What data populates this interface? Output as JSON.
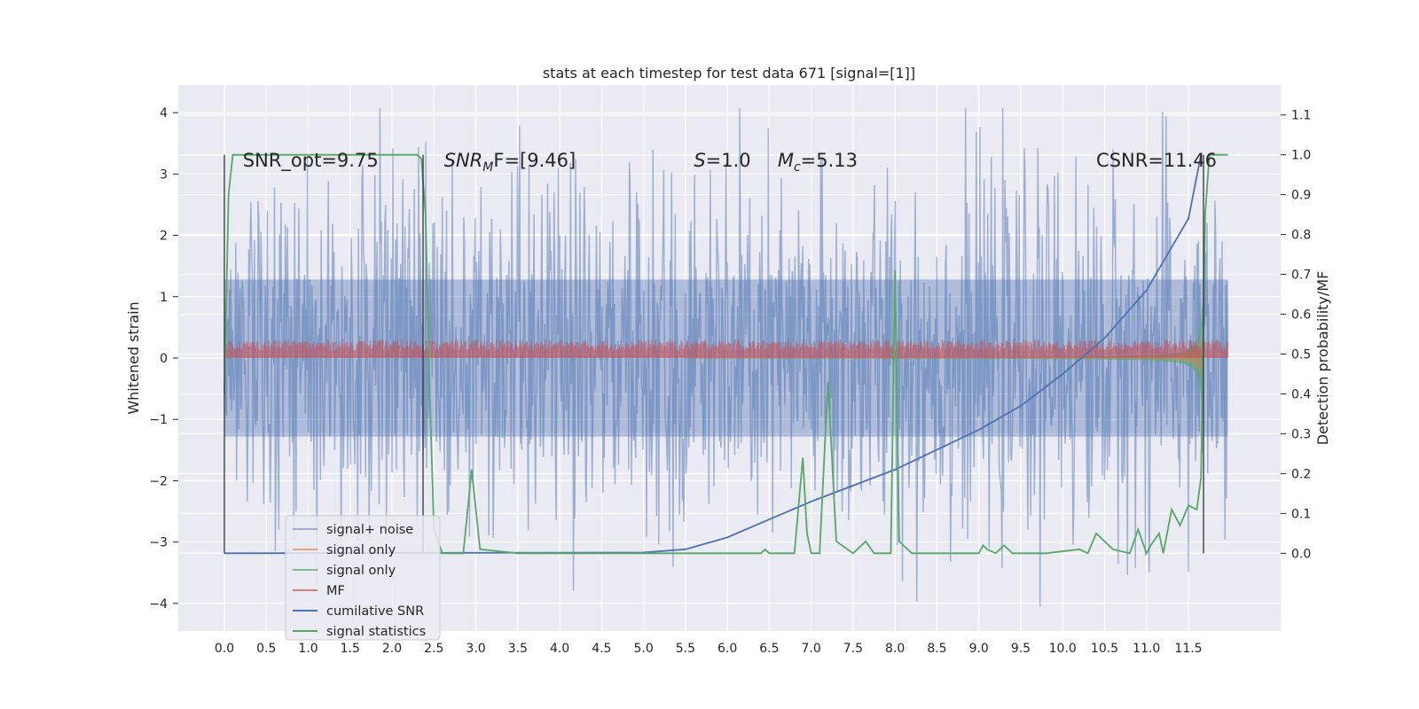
{
  "chart_data": {
    "type": "line",
    "title": "stats at each timestep for test data 671 [signal=[1]]",
    "xlabel": "",
    "ylabel": "Whitened strain",
    "y2label": "Detection probability/MF",
    "xlim": [
      -0.55,
      12.6
    ],
    "ylim": [
      -4.45,
      4.45
    ],
    "y2lim": [
      -0.195,
      1.175
    ],
    "xticks": [
      "0.0",
      "0.5",
      "1.0",
      "1.5",
      "2.0",
      "2.5",
      "3.0",
      "3.5",
      "4.0",
      "4.5",
      "5.0",
      "5.5",
      "6.0",
      "6.5",
      "7.0",
      "7.5",
      "8.0",
      "8.5",
      "9.0",
      "9.5",
      "10.0",
      "10.5",
      "11.0",
      "11.5"
    ],
    "yticks": [
      "4",
      "3",
      "2",
      "1",
      "0",
      "−1",
      "−2",
      "−3",
      "−4"
    ],
    "y2ticks": [
      "1.1",
      "1.0",
      "0.9",
      "0.8",
      "0.7",
      "0.6",
      "0.5",
      "0.4",
      "0.3",
      "0.2",
      "0.1",
      "0.0"
    ],
    "grid": true,
    "legend_position": "lower-left",
    "annotations": [
      {
        "text": "SNR_opt=9.75",
        "x": 0.22,
        "y": 3.15
      },
      {
        "text": "SNR",
        "sub": "M",
        "suffix": "F=[9.46]",
        "x": 2.62,
        "y": 3.15
      },
      {
        "text": "S",
        "suffix": "=1.0",
        "x": 5.6,
        "y": 3.15
      },
      {
        "text": "M",
        "sub": "c",
        "suffix": "=5.13",
        "x": 6.6,
        "y": 3.15
      },
      {
        "text": "CSNR=11.46",
        "x": 10.4,
        "y": 3.15
      }
    ],
    "series": [
      {
        "name": "signal+ noise",
        "color": "#4c72b0",
        "style": "noise-band",
        "x_range": [
          0.0,
          11.97
        ],
        "y_range": [
          -4.07,
          4.07
        ]
      },
      {
        "name": "signal only",
        "color": "#dd8452",
        "style": "chirp",
        "peak_amplitude": 0.95
      },
      {
        "name": "signal only",
        "color": "#55a868",
        "style": "chirp-band",
        "peak_amplitude": 0.85
      },
      {
        "name": "MF",
        "color": "#c44e52",
        "style": "mf-band",
        "amplitude": 0.3
      },
      {
        "name": "cumilative SNR",
        "color": "#4c72b0",
        "axis": "y2",
        "x": [
          0.0,
          5.0,
          5.5,
          6.0,
          6.5,
          7.0,
          7.5,
          8.0,
          8.5,
          9.0,
          9.5,
          10.0,
          10.5,
          11.0,
          11.5,
          11.65
        ],
        "values": [
          0.0,
          0.002,
          0.01,
          0.04,
          0.085,
          0.13,
          0.17,
          0.21,
          0.26,
          0.31,
          0.37,
          0.45,
          0.54,
          0.66,
          0.84,
          1.0
        ]
      },
      {
        "name": "signal statistics",
        "color": "#55a868",
        "axis": "y2",
        "x": [
          0.0,
          0.05,
          0.1,
          0.2,
          2.3,
          2.35,
          2.4,
          2.45,
          2.5,
          2.6,
          2.85,
          2.95,
          3.05,
          3.5,
          4.0,
          6.4,
          6.45,
          6.5,
          6.8,
          6.9,
          6.95,
          7.0,
          7.1,
          7.2,
          7.3,
          7.5,
          7.65,
          7.75,
          7.95,
          8.0,
          8.05,
          8.2,
          8.5,
          9.0,
          9.05,
          9.1,
          9.2,
          9.3,
          9.4,
          9.6,
          9.8,
          10.2,
          10.3,
          10.4,
          10.6,
          10.8,
          10.9,
          11.0,
          11.05,
          11.15,
          11.2,
          11.3,
          11.4,
          11.5,
          11.6,
          11.65,
          11.7,
          11.75,
          11.8,
          11.97
        ],
        "values": [
          0.4,
          0.9,
          1.0,
          1.0,
          1.0,
          0.99,
          0.85,
          0.4,
          0.06,
          0.0,
          0.0,
          0.21,
          0.01,
          0.0,
          0.0,
          0.0,
          0.01,
          0.0,
          0.0,
          0.24,
          0.05,
          0.0,
          0.0,
          0.43,
          0.03,
          0.0,
          0.03,
          0.0,
          0.0,
          0.71,
          0.03,
          0.0,
          0.0,
          0.0,
          0.02,
          0.01,
          0.0,
          0.02,
          0.0,
          0.0,
          0.0,
          0.01,
          0.0,
          0.05,
          0.01,
          0.0,
          0.06,
          0.0,
          0.02,
          0.05,
          0.0,
          0.11,
          0.07,
          0.12,
          0.11,
          0.19,
          0.85,
          1.0,
          1.0,
          1.0
        ]
      }
    ],
    "vlines": [
      0.0,
      2.37,
      11.68
    ]
  }
}
